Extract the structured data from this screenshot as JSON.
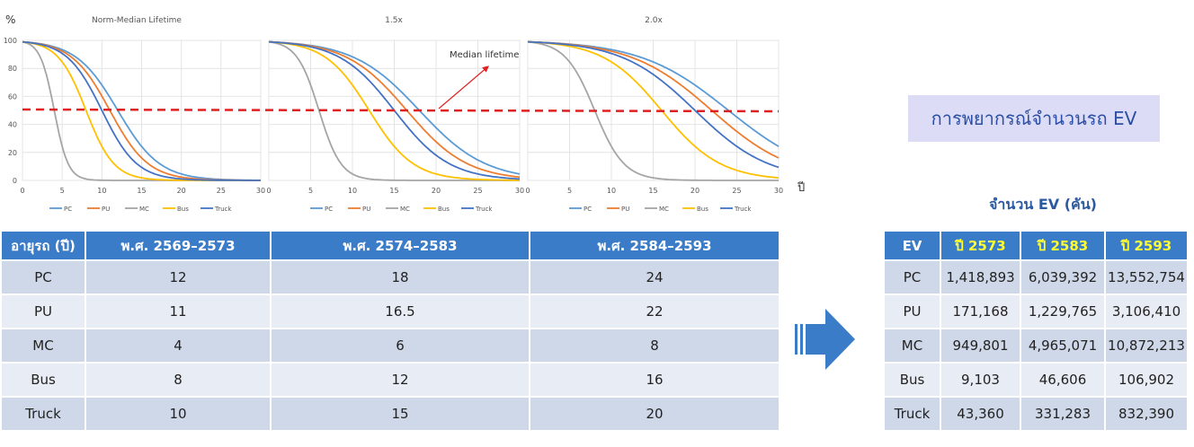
{
  "chart_data": [
    {
      "type": "line",
      "title": "Norm-Median Lifetime",
      "xlabel": "ปี",
      "ylabel": "%",
      "xlim": [
        0,
        30
      ],
      "ylim": [
        0,
        100
      ],
      "x_ticks": [
        "0",
        "5",
        "10",
        "15",
        "20",
        "25",
        "30"
      ],
      "y_ticks": [
        "0",
        "20",
        "40",
        "60",
        "80",
        "100"
      ],
      "legend": [
        "PC",
        "PU",
        "MC",
        "Bus",
        "Truck"
      ],
      "legend_position": "bottom",
      "grid": true,
      "series": [
        {
          "name": "PC",
          "median": 12,
          "color": "#5b9bd5"
        },
        {
          "name": "PU",
          "median": 11,
          "color": "#ed7d31"
        },
        {
          "name": "MC",
          "median": 4,
          "color": "#a5a5a5"
        },
        {
          "name": "Bus",
          "median": 8,
          "color": "#ffc000"
        },
        {
          "name": "Truck",
          "median": 10,
          "color": "#4472c4"
        }
      ],
      "reference_line": {
        "y": 50
      }
    },
    {
      "type": "line",
      "title": "1.5x",
      "xlim": [
        0,
        30
      ],
      "ylim": [
        0,
        100
      ],
      "x_ticks": [
        "0",
        "5",
        "10",
        "15",
        "20",
        "25",
        "30"
      ],
      "legend": [
        "PC",
        "PU",
        "MC",
        "Bus",
        "Truck"
      ],
      "legend_position": "bottom",
      "grid": true,
      "annotation": "Median lifetime",
      "series": [
        {
          "name": "PC",
          "median": 18,
          "color": "#5b9bd5"
        },
        {
          "name": "PU",
          "median": 16.5,
          "color": "#ed7d31"
        },
        {
          "name": "MC",
          "median": 6,
          "color": "#a5a5a5"
        },
        {
          "name": "Bus",
          "median": 12,
          "color": "#ffc000"
        },
        {
          "name": "Truck",
          "median": 15,
          "color": "#4472c4"
        }
      ],
      "reference_line": {
        "y": 50
      }
    },
    {
      "type": "line",
      "title": "2.0x",
      "xlim": [
        0,
        30
      ],
      "ylim": [
        0,
        100
      ],
      "x_ticks": [
        "0",
        "5",
        "10",
        "15",
        "20",
        "25",
        "30"
      ],
      "legend": [
        "PC",
        "PU",
        "MC",
        "Bus",
        "Truck"
      ],
      "legend_position": "bottom",
      "grid": true,
      "series": [
        {
          "name": "PC",
          "median": 24,
          "color": "#5b9bd5"
        },
        {
          "name": "PU",
          "median": 22,
          "color": "#ed7d31"
        },
        {
          "name": "MC",
          "median": 8,
          "color": "#a5a5a5"
        },
        {
          "name": "Bus",
          "median": 16,
          "color": "#ffc000"
        },
        {
          "name": "Truck",
          "median": 20,
          "color": "#4472c4"
        }
      ],
      "reference_line": {
        "y": 50
      }
    }
  ],
  "lifetime_table": {
    "headers": [
      "อายุรถ (ปี)",
      "พ.ศ. 2569–2573",
      "พ.ศ. 2574–2583",
      "พ.ศ. 2584–2593"
    ],
    "rows": [
      [
        "PC",
        "12",
        "18",
        "24"
      ],
      [
        "PU",
        "11",
        "16.5",
        "22"
      ],
      [
        "MC",
        "4",
        "6",
        "8"
      ],
      [
        "Bus",
        "8",
        "12",
        "16"
      ],
      [
        "Truck",
        "10",
        "15",
        "20"
      ]
    ]
  },
  "forecast_title": "การพยากรณ์จำนวนรถ EV",
  "ev_caption": "จำนวน EV (คัน)",
  "ev_table": {
    "headers": [
      "EV",
      "ปี 2573",
      "ปี 2583",
      "ปี 2593"
    ],
    "rows": [
      [
        "PC",
        "1,418,893",
        "6,039,392",
        "13,552,754"
      ],
      [
        "PU",
        "171,168",
        "1,229,765",
        "3,106,410"
      ],
      [
        "MC",
        "949,801",
        "4,965,071",
        "10,872,213"
      ],
      [
        "Bus",
        "9,103",
        "46,606",
        "106,902"
      ],
      [
        "Truck",
        "43,360",
        "331,283",
        "832,390"
      ]
    ]
  },
  "colors": {
    "header_blue": "#3a7cc7",
    "year_yellow": "#ffff33",
    "arrow_blue": "#3a7cc7",
    "dashed_red": "#e02020"
  }
}
